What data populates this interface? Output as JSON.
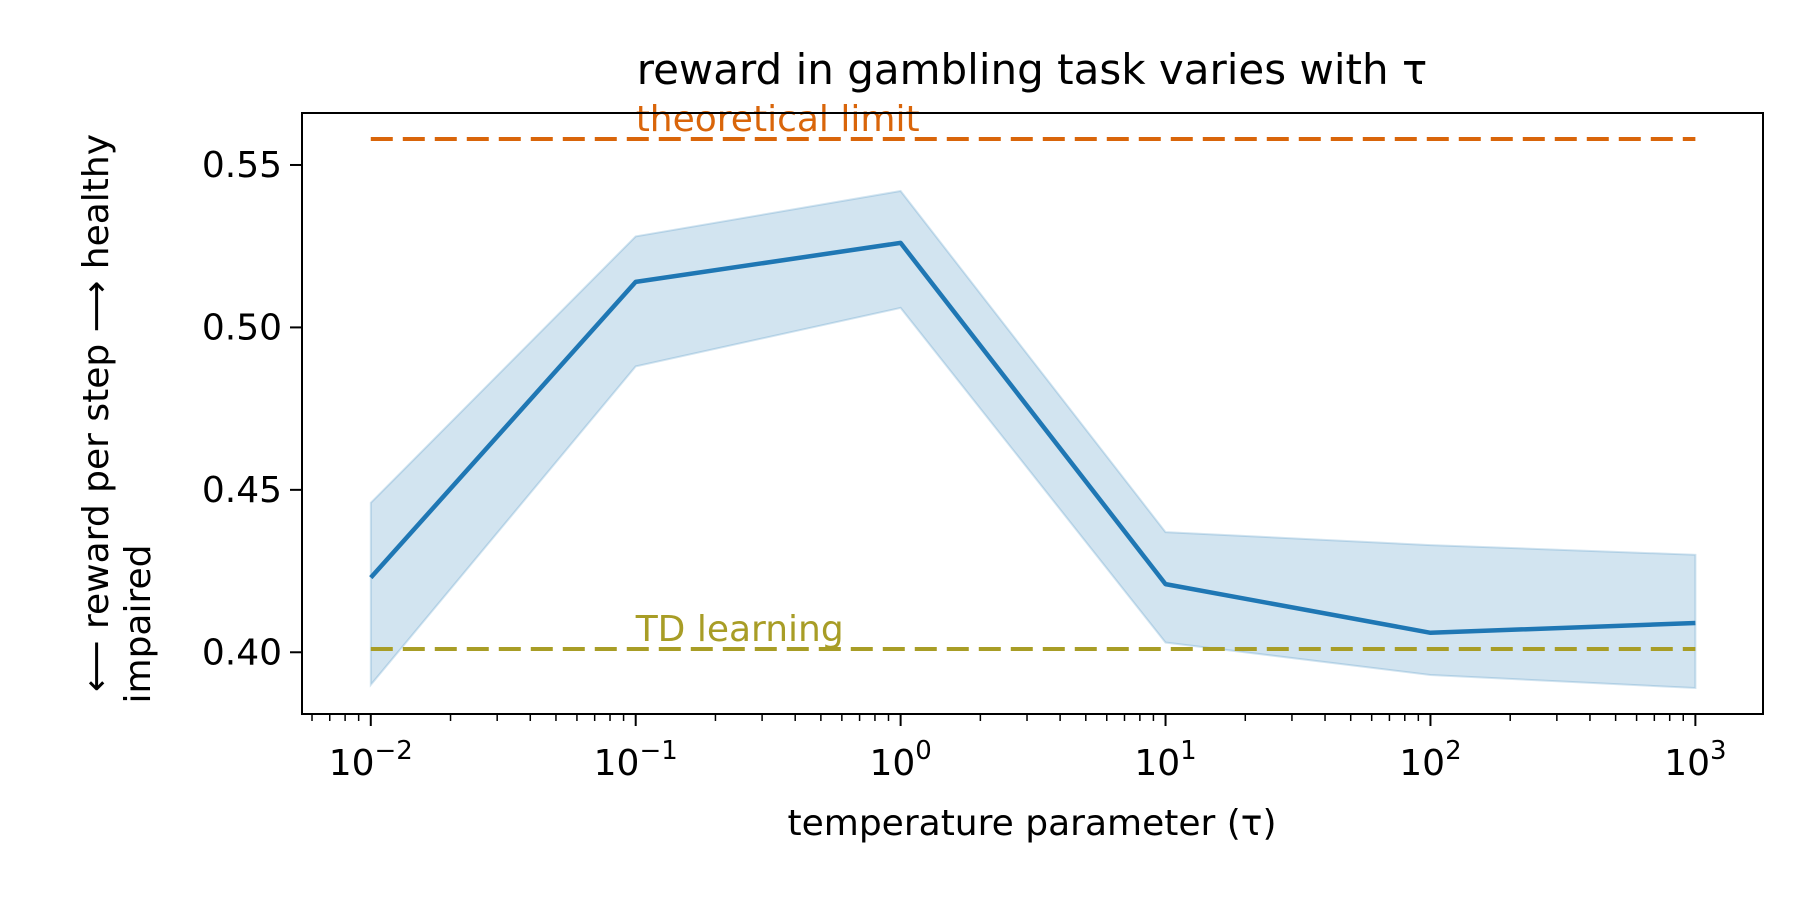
{
  "chart_data": {
    "type": "line",
    "title": "reward in gambling task varies with τ",
    "xlabel": "temperature parameter (τ)",
    "ylabel_line1": "impaired ⟵    reward per step    ⟶ healthy",
    "ylabel_line2": "impaired",
    "ylabel": "reward per step",
    "xscale": "log",
    "xlim": [
      0.0055,
      1800
    ],
    "ylim": [
      0.381,
      0.566
    ],
    "grid": false,
    "x_ticks": [
      {
        "value": 0.01,
        "base": "10",
        "exp": "−2"
      },
      {
        "value": 0.1,
        "base": "10",
        "exp": "−1"
      },
      {
        "value": 1,
        "base": "10",
        "exp": "0"
      },
      {
        "value": 10,
        "base": "10",
        "exp": "1"
      },
      {
        "value": 100,
        "base": "10",
        "exp": "2"
      },
      {
        "value": 1000,
        "base": "10",
        "exp": "3"
      }
    ],
    "y_ticks": [
      {
        "value": 0.4,
        "label": "0.40"
      },
      {
        "value": 0.45,
        "label": "0.45"
      },
      {
        "value": 0.5,
        "label": "0.50"
      },
      {
        "value": 0.55,
        "label": "0.55"
      }
    ],
    "series": [
      {
        "x": [
          0.01,
          0.1,
          1,
          10,
          100,
          1000
        ],
        "values": [
          0.423,
          0.514,
          0.526,
          0.421,
          0.406,
          0.409
        ],
        "lower": [
          0.39,
          0.488,
          0.506,
          0.403,
          0.393,
          0.389
        ],
        "upper": [
          0.446,
          0.528,
          0.542,
          0.437,
          0.433,
          0.43
        ],
        "color": "#1f77b4",
        "band_color": "#1f77b4"
      }
    ],
    "reference_lines": [
      {
        "label": "theoretical limit",
        "y": 0.558,
        "x_start": 0.01,
        "x_end": 1000,
        "color": "#d9650a",
        "label_x": 0.1
      },
      {
        "label": "TD learning",
        "y": 0.401,
        "x_start": 0.01,
        "x_end": 1000,
        "color": "#a89d26",
        "label_x": 0.1
      }
    ]
  }
}
